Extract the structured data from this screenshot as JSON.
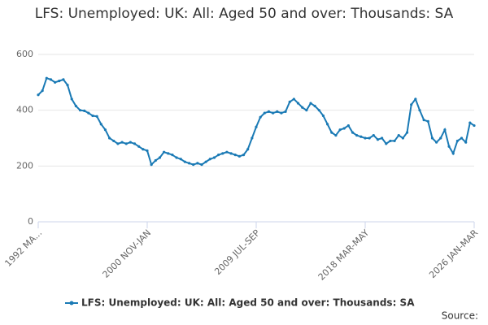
{
  "chart_data": {
    "type": "line",
    "title": "LFS: Unemployed: UK: All: Aged 50 and over: Thousands: SA",
    "source": "Source:",
    "categories": [
      "1992 MA...",
      null,
      null,
      null,
      null,
      null,
      null,
      null,
      null,
      null,
      null,
      null,
      null,
      null,
      null,
      null,
      null,
      null,
      null,
      null,
      null,
      null,
      null,
      null,
      null,
      null,
      "2000 NOV-JAN",
      null,
      null,
      null,
      null,
      null,
      null,
      null,
      null,
      null,
      null,
      null,
      null,
      null,
      null,
      null,
      null,
      null,
      null,
      null,
      null,
      null,
      null,
      null,
      null,
      null,
      "2009 JUL-SEP",
      null,
      null,
      null,
      null,
      null,
      null,
      null,
      null,
      null,
      null,
      null,
      null,
      null,
      null,
      null,
      null,
      null,
      null,
      null,
      null,
      null,
      null,
      null,
      null,
      null,
      "2018 MAR-MAY",
      null,
      null,
      null,
      null,
      null,
      null,
      null,
      null,
      null,
      null,
      null,
      null,
      null,
      null,
      null,
      null,
      null,
      null,
      null,
      null,
      null,
      null,
      null,
      null,
      null,
      "2026 JAN-MAR"
    ],
    "series": [
      {
        "name": "LFS: Unemployed: UK: All: Aged 50 and over: Thousands: SA",
        "color": "#1a7ab5",
        "values": [
          455,
          470,
          515,
          510,
          500,
          505,
          510,
          490,
          440,
          415,
          400,
          398,
          390,
          380,
          378,
          350,
          330,
          300,
          290,
          280,
          285,
          280,
          285,
          280,
          270,
          260,
          255,
          205,
          220,
          230,
          250,
          245,
          240,
          230,
          225,
          215,
          210,
          205,
          210,
          205,
          215,
          225,
          230,
          240,
          245,
          250,
          245,
          240,
          235,
          240,
          260,
          300,
          340,
          375,
          390,
          395,
          390,
          395,
          390,
          395,
          430,
          440,
          425,
          410,
          400,
          425,
          415,
          400,
          380,
          350,
          320,
          310,
          330,
          335,
          345,
          320,
          310,
          305,
          300,
          300,
          310,
          295,
          300,
          280,
          290,
          290,
          310,
          300,
          320,
          420,
          440,
          400,
          365,
          360,
          300,
          285,
          300,
          330,
          270,
          245,
          290,
          300,
          285,
          355,
          345
        ]
      }
    ],
    "ylim": [
      0,
      600
    ],
    "yticks": [
      0,
      200,
      400,
      600
    ],
    "grid": true
  }
}
